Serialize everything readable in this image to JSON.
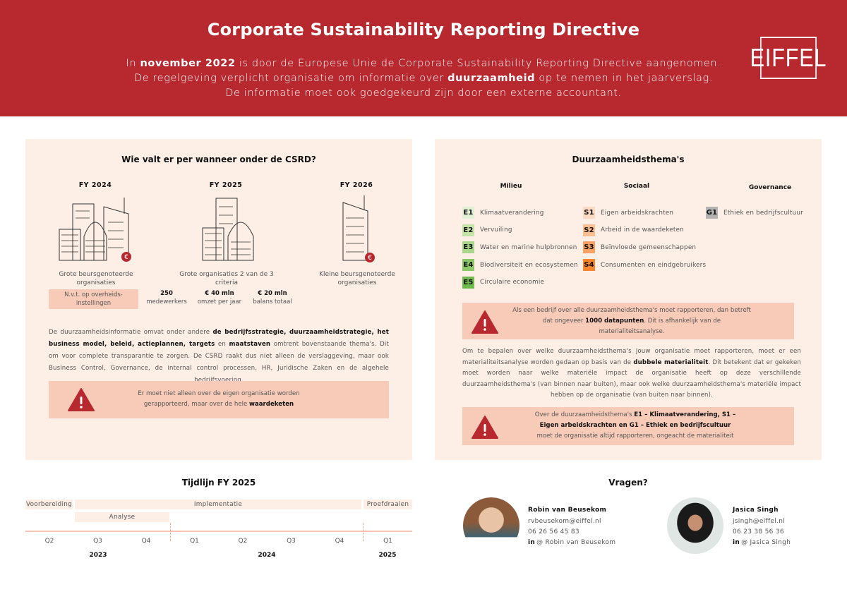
{
  "header": {
    "title": "Corporate Sustainability Reporting Directive",
    "intro_lines": [
      [
        {
          "t": "In "
        },
        {
          "t": "november 2022",
          "b": true
        },
        {
          "t": " is door de Europese Unie de Corporate Sustainability Reporting Directive aangenomen."
        }
      ],
      [
        {
          "t": "De regelgeving verplicht organisatie om informatie over "
        },
        {
          "t": "duurzaamheid",
          "b": true
        },
        {
          "t": " op te nemen in het jaarverslag."
        }
      ],
      [
        {
          "t": "De informatie moet ook goedgekeurd zijn door een externe accountant."
        }
      ]
    ],
    "logo": "EIFFEL",
    "brand_color": "#b8282f"
  },
  "left": {
    "title": "Wie valt er per wanneer onder de CSRD?",
    "years": [
      {
        "fy": "FY 2024",
        "caption": "Grote beursgenoteerde organisaties"
      },
      {
        "fy": "FY 2025",
        "caption": "Grote organisaties 2 van de 3 criteria"
      },
      {
        "fy": "FY 2026",
        "caption": "Kleine beursgenoteerde organisaties"
      }
    ],
    "nvt": "N.v.t. op overheids-instellingen",
    "criteria": [
      {
        "value": "250",
        "label": "medewerkers"
      },
      {
        "value": "€ 40 mln",
        "label": "omzet per jaar"
      },
      {
        "value": "€ 20 mln",
        "label": "balans totaal"
      }
    ],
    "paragraph": [
      {
        "t": "De duurzaamheidsinformatie omvat onder andere "
      },
      {
        "t": "de bedrijfsstrategie, duurzaamheidstrategie, het business model, beleid, actieplannen, targets",
        "b": true
      },
      {
        "t": " en "
      },
      {
        "t": "maatstaven",
        "b": true
      },
      {
        "t": " omtrent bovenstaande thema's. Dit om voor complete transparantie te zorgen. De CSRD raakt dus niet alleen de verslaggeving, maar ook Business Control, Governance, de internal control processen, HR, Juridische Zaken en de algehele bedrijfsvoering."
      }
    ],
    "alert": [
      {
        "t": "Er moet niet alleen over de eigen organisatie worden gerapporteerd, maar over de hele "
      },
      {
        "t": "waardeketen",
        "b": true
      }
    ]
  },
  "right": {
    "title": "Duurzaamheidsthema's",
    "columns": [
      "Milieu",
      "Sociaal",
      "Governance"
    ],
    "themes": {
      "milieu": [
        {
          "code": "E1",
          "label": "Klimaatverandering",
          "color": "#e2f0d4"
        },
        {
          "code": "E2",
          "label": "Vervuiling",
          "color": "#c5e3a8"
        },
        {
          "code": "E3",
          "label": "Water en marine hulpbronnen",
          "color": "#a9d68a"
        },
        {
          "code": "E4",
          "label": "Biodiversiteit en ecosystemen",
          "color": "#8cc868"
        },
        {
          "code": "E5",
          "label": "Circulaire economie",
          "color": "#6fba4c"
        }
      ],
      "sociaal": [
        {
          "code": "S1",
          "label": "Eigen arbeidskrachten",
          "color": "#fcd9c2"
        },
        {
          "code": "S2",
          "label": "Arbeid in de waardeketen",
          "color": "#fbbe93"
        },
        {
          "code": "S3",
          "label": "Beïnvloede gemeenschappen",
          "color": "#f9a264"
        },
        {
          "code": "S4",
          "label": "Consumenten en eindgebruikers",
          "color": "#f7862f"
        }
      ],
      "governance": [
        {
          "code": "G1",
          "label": "Ethiek en bedrijfscultuur",
          "color": "#b3b3b3"
        }
      ]
    },
    "alert1": [
      {
        "t": "Als een bedrijf over alle duurzaamheidsthema's moet rapporteren, dan betreft dat ongeveer "
      },
      {
        "t": "1000 datapunten",
        "b": true
      },
      {
        "t": ". Dit is afhankelijk van de materialiteitsanalyse."
      }
    ],
    "paragraph": [
      {
        "t": "Om te bepalen over welke duurzaamheidsthema's jouw organisatie moet rapporteren, moet er een materialiteitsanalyse worden gedaan op basis van de "
      },
      {
        "t": "dubbele materialiteit",
        "b": true
      },
      {
        "t": ". Dit betekent dat er gekeken moet worden naar welke materiële impact de organisatie heeft op deze verschillende duurzaamheidsthema's (van binnen naar buiten), maar ook welke duurzaamheidsthema's materiële impact hebben op de organisatie (van buiten naar binnen)."
      }
    ],
    "alert2": [
      {
        "t": "Over de duurzaamheidsthema's "
      },
      {
        "t": "E1 – Klimaatverandering, S1 – Eigen arbeidskrachten en G1 – Ethiek en bedrijfscultuur",
        "b": true
      },
      {
        "t": " moet de organisatie altijd rapporteren, ongeacht de materialiteit"
      }
    ]
  },
  "timeline": {
    "title": "Tijdlijn FY 2025",
    "phases": [
      "Voorbereiding",
      "Implementatie",
      "Proefdraaien",
      "Analyse"
    ],
    "quarters": [
      "Q2",
      "Q3",
      "Q4",
      "Q1",
      "Q2",
      "Q3",
      "Q4",
      "Q1"
    ],
    "years": [
      "2023",
      "2024",
      "2025"
    ]
  },
  "contacts": {
    "title": "Vragen?",
    "people": [
      {
        "name": "Robin van Beusekom",
        "email": "rvbeusekom@eiffel.nl",
        "phone": "06 26 56 45 83",
        "linkedin": "@ Robin van Beusekom"
      },
      {
        "name": "Jasica Singh",
        "email": "jsingh@eiffel.nl",
        "phone": "06 23 38 56 36",
        "linkedin": "@ Jasica Singh"
      }
    ],
    "linkedin_icon": "in"
  }
}
